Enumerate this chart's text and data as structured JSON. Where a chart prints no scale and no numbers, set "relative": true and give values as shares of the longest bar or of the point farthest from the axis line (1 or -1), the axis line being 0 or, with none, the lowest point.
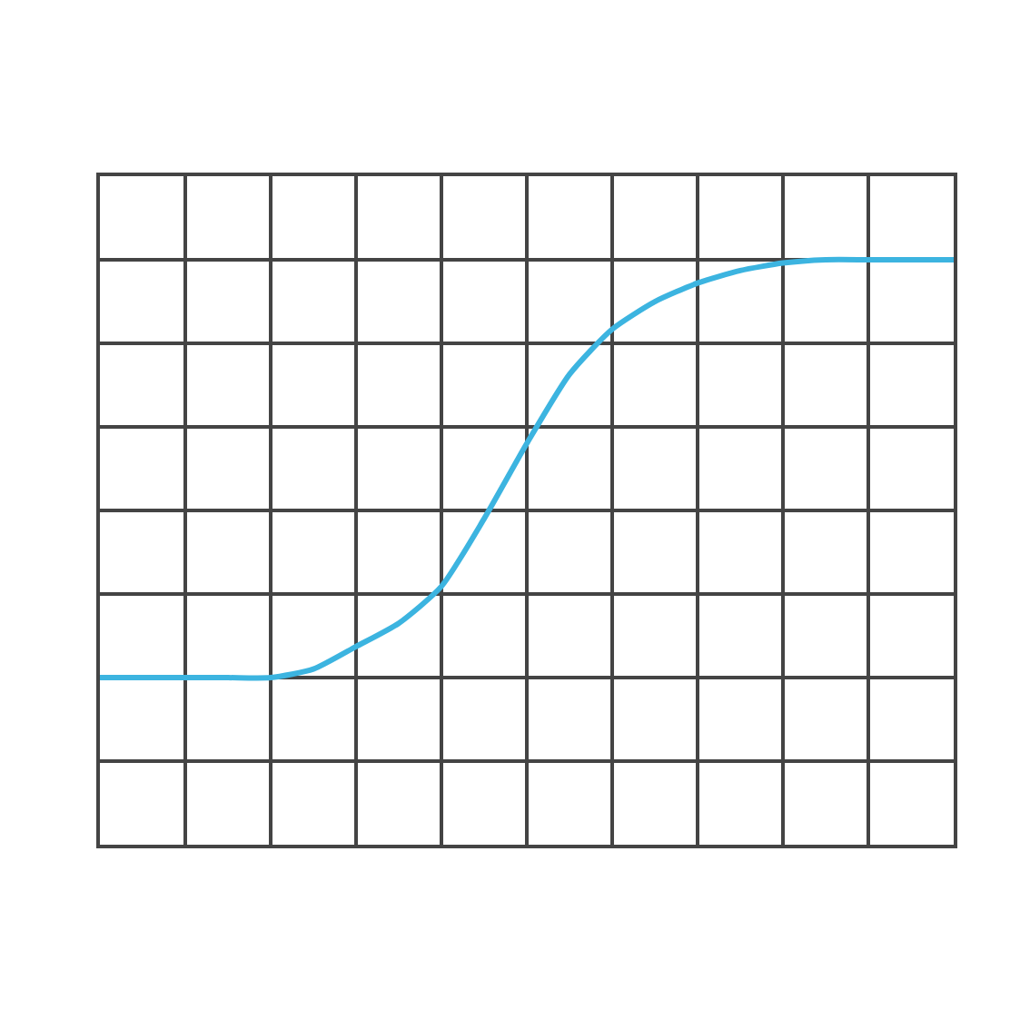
{
  "chart_data": {
    "type": "line",
    "relative": true,
    "grid": true,
    "categories": [
      null,
      null,
      null,
      null,
      null,
      null,
      null,
      null,
      null,
      null,
      null,
      null,
      null,
      null,
      null,
      null,
      null,
      null,
      null,
      null,
      null
    ],
    "series": [
      {
        "color": "#3cb4e0",
        "values": [
          -0.667,
          -0.667,
          -0.667,
          -0.667,
          -0.667,
          -0.633,
          -0.543,
          -0.45,
          -0.303,
          -0.033,
          0.267,
          0.543,
          0.723,
          0.833,
          0.907,
          0.957,
          0.987,
          1,
          1,
          1,
          1
        ]
      }
    ]
  }
}
